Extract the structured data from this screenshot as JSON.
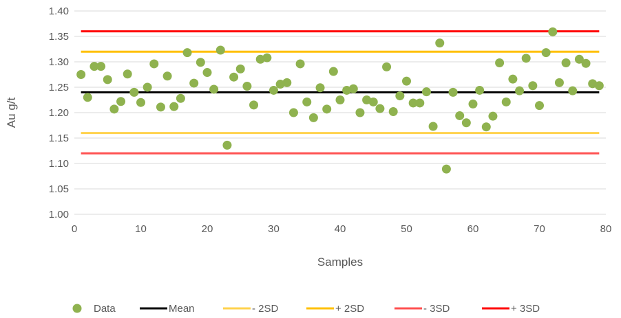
{
  "chart_data": {
    "type": "scatter",
    "xlabel": "Samples",
    "ylabel": "Au g/t",
    "xlim": [
      0,
      80
    ],
    "ylim": [
      1.0,
      1.4
    ],
    "x_ticks": [
      "0",
      "10",
      "20",
      "30",
      "40",
      "50",
      "60",
      "70",
      "80"
    ],
    "y_ticks": [
      "1.00",
      "1.05",
      "1.10",
      "1.15",
      "1.20",
      "1.25",
      "1.30",
      "1.35",
      "1.40"
    ],
    "grid": "horizontal",
    "legend_position": "bottom",
    "series": [
      {
        "name": "Data",
        "type": "scatter",
        "color": "#8fb24f",
        "x": [
          1,
          2,
          3,
          4,
          5,
          6,
          7,
          8,
          9,
          10,
          11,
          12,
          13,
          14,
          15,
          16,
          17,
          18,
          19,
          20,
          21,
          22,
          23,
          24,
          25,
          26,
          27,
          28,
          29,
          30,
          31,
          32,
          33,
          34,
          35,
          36,
          37,
          38,
          39,
          40,
          41,
          42,
          43,
          44,
          45,
          46,
          47,
          48,
          49,
          50,
          51,
          52,
          53,
          54,
          55,
          56,
          57,
          58,
          59,
          60,
          61,
          62,
          63,
          64,
          65,
          66,
          67,
          68,
          69,
          70,
          71,
          72,
          73,
          74,
          75,
          76,
          77,
          78,
          79
        ],
        "y": [
          1.275,
          1.23,
          1.291,
          1.291,
          1.265,
          1.207,
          1.222,
          1.276,
          1.24,
          1.22,
          1.25,
          1.296,
          1.211,
          1.272,
          1.212,
          1.228,
          1.318,
          1.258,
          1.299,
          1.279,
          1.246,
          1.323,
          1.136,
          1.27,
          1.286,
          1.252,
          1.215,
          1.305,
          1.308,
          1.244,
          1.256,
          1.259,
          1.2,
          1.296,
          1.221,
          1.19,
          1.249,
          1.207,
          1.281,
          1.225,
          1.244,
          1.247,
          1.2,
          1.225,
          1.221,
          1.208,
          1.29,
          1.202,
          1.233,
          1.262,
          1.219,
          1.219,
          1.241,
          1.173,
          1.337,
          1.089,
          1.24,
          1.194,
          1.18,
          1.217,
          1.244,
          1.172,
          1.193,
          1.298,
          1.221,
          1.266,
          1.243,
          1.307,
          1.253,
          1.214,
          1.318,
          1.359,
          1.259,
          1.298,
          1.243,
          1.305,
          1.297,
          1.257,
          1.253
        ]
      },
      {
        "name": "Mean",
        "type": "hline",
        "value": 1.24,
        "color": "#000000"
      },
      {
        "name": "- 2SD",
        "type": "hline",
        "value": 1.16,
        "color": "#ffd24d"
      },
      {
        "name": "+ 2SD",
        "type": "hline",
        "value": 1.32,
        "color": "#ffc000"
      },
      {
        "name": "- 3SD",
        "type": "hline",
        "value": 1.12,
        "color": "#ff5050"
      },
      {
        "name": "+ 3SD",
        "type": "hline",
        "value": 1.36,
        "color": "#ff0000"
      }
    ]
  }
}
